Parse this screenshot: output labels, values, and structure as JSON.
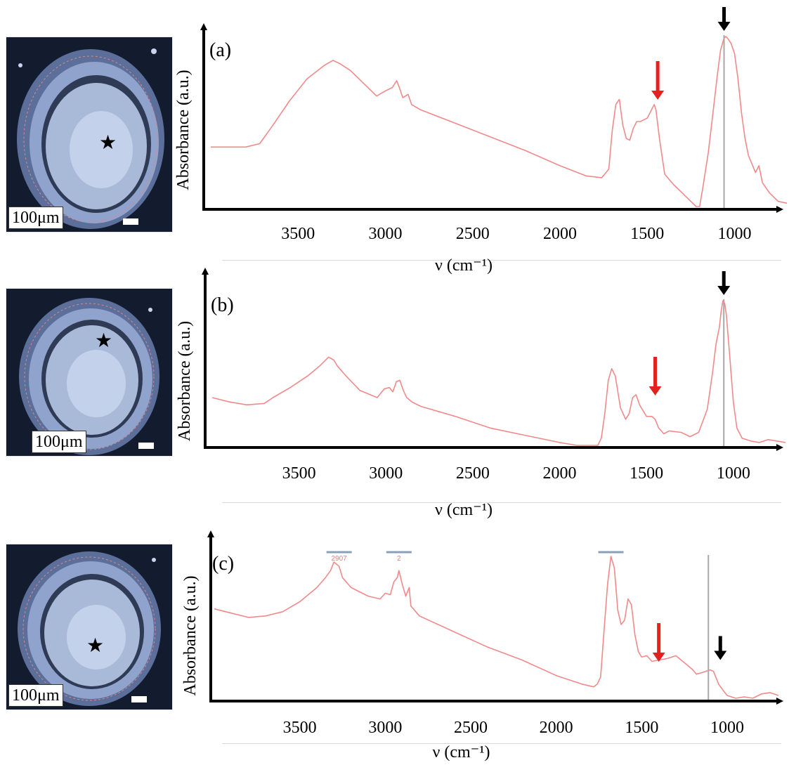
{
  "micrographs": [
    {
      "scale_label": "100μm",
      "star": "★"
    },
    {
      "scale_label": "100μm",
      "star": "★"
    },
    {
      "scale_label": "100μm",
      "star": "★"
    }
  ],
  "chart_data": [
    {
      "type": "line",
      "panel_label": "(a)",
      "ylabel": "Absorbance (a.u.)",
      "xlabel": "ν (cm⁻¹)",
      "xlim": [
        4000,
        700
      ],
      "xticks": [
        3500,
        3000,
        2500,
        2000,
        1500,
        1000
      ],
      "ylim": [
        0,
        1
      ],
      "line_color": "#f08a8a",
      "series": [
        {
          "x": [
            4000,
            3800,
            3720,
            3650,
            3550,
            3450,
            3350,
            3300,
            3260,
            3200,
            3100,
            3050,
            3000,
            2960,
            2935,
            2920,
            2900,
            2870,
            2850,
            2800,
            2600,
            2400,
            2200,
            2000,
            1850,
            1760,
            1720,
            1700,
            1680,
            1660,
            1640,
            1620,
            1600,
            1580,
            1560,
            1540,
            1500,
            1460,
            1450,
            1430,
            1400,
            1350,
            1300,
            1250,
            1220,
            1200,
            1180,
            1150,
            1120,
            1100,
            1080,
            1060,
            1050,
            1040,
            1020,
            1000,
            980,
            960,
            940,
            920,
            900,
            880,
            860,
            840,
            800,
            750,
            700
          ],
          "y": [
            0.35,
            0.35,
            0.37,
            0.47,
            0.62,
            0.75,
            0.83,
            0.86,
            0.84,
            0.8,
            0.7,
            0.65,
            0.68,
            0.7,
            0.74,
            0.7,
            0.64,
            0.66,
            0.6,
            0.57,
            0.49,
            0.41,
            0.33,
            0.24,
            0.18,
            0.17,
            0.22,
            0.45,
            0.6,
            0.63,
            0.48,
            0.4,
            0.39,
            0.46,
            0.5,
            0.5,
            0.52,
            0.6,
            0.57,
            0.4,
            0.19,
            0.13,
            0.08,
            0.03,
            0.0,
            0.0,
            0.12,
            0.32,
            0.58,
            0.76,
            0.92,
            0.99,
            1.0,
            0.99,
            0.96,
            0.9,
            0.75,
            0.55,
            0.4,
            0.3,
            0.25,
            0.2,
            0.24,
            0.14,
            0.08,
            0.03,
            0.02
          ]
        }
      ],
      "markers": {
        "line_x": 1060,
        "black_arrow_x": 1060,
        "red_arrow_x": 1440
      }
    },
    {
      "type": "line",
      "panel_label": "(b)",
      "ylabel": "Absorbance (a.u.)",
      "xlabel": "ν (cm⁻¹)",
      "xlim": [
        4000,
        700
      ],
      "xticks": [
        3500,
        3000,
        2500,
        2000,
        1500,
        1000
      ],
      "ylim": [
        0,
        1
      ],
      "line_color": "#f08a8a",
      "series": [
        {
          "x": [
            4000,
            3900,
            3800,
            3700,
            3650,
            3550,
            3450,
            3380,
            3330,
            3300,
            3280,
            3230,
            3150,
            3050,
            3010,
            2980,
            2960,
            2940,
            2920,
            2900,
            2880,
            2850,
            2800,
            2600,
            2400,
            2200,
            2000,
            1900,
            1850,
            1820,
            1780,
            1760,
            1740,
            1720,
            1700,
            1680,
            1650,
            1620,
            1600,
            1580,
            1560,
            1540,
            1500,
            1470,
            1450,
            1430,
            1400,
            1370,
            1300,
            1250,
            1200,
            1150,
            1120,
            1100,
            1080,
            1070,
            1060,
            1050,
            1040,
            1020,
            1000,
            980,
            950,
            900,
            850,
            800,
            750,
            700
          ],
          "y": [
            0.33,
            0.3,
            0.28,
            0.29,
            0.33,
            0.4,
            0.48,
            0.55,
            0.61,
            0.59,
            0.55,
            0.48,
            0.38,
            0.33,
            0.39,
            0.4,
            0.37,
            0.44,
            0.45,
            0.38,
            0.33,
            0.3,
            0.27,
            0.2,
            0.12,
            0.07,
            0.02,
            0.0,
            0.0,
            0.0,
            0.0,
            0.05,
            0.22,
            0.45,
            0.53,
            0.48,
            0.26,
            0.18,
            0.22,
            0.33,
            0.35,
            0.28,
            0.2,
            0.2,
            0.18,
            0.12,
            0.08,
            0.1,
            0.09,
            0.06,
            0.09,
            0.25,
            0.5,
            0.7,
            0.82,
            0.93,
            1.0,
            0.98,
            0.9,
            0.6,
            0.3,
            0.12,
            0.05,
            0.03,
            0.02,
            0.04,
            0.03,
            0.02
          ]
        }
      ],
      "markers": {
        "line_x": 1055,
        "black_arrow_x": 1055,
        "red_arrow_x": 1450
      }
    },
    {
      "type": "line",
      "panel_label": "(c)",
      "ylabel": "Absorbance (a.u.)",
      "xlabel": "ν (cm⁻¹)",
      "xlim": [
        4000,
        700
      ],
      "xticks": [
        3500,
        3000,
        2500,
        2000,
        1500,
        1000
      ],
      "ylim": [
        0,
        1
      ],
      "line_color": "#f08a8a",
      "series": [
        {
          "x": [
            4000,
            3900,
            3800,
            3700,
            3600,
            3500,
            3400,
            3350,
            3320,
            3300,
            3270,
            3250,
            3200,
            3100,
            3030,
            3000,
            2970,
            2950,
            2930,
            2920,
            2900,
            2880,
            2860,
            2850,
            2800,
            2600,
            2400,
            2200,
            2000,
            1850,
            1780,
            1760,
            1740,
            1720,
            1700,
            1680,
            1660,
            1640,
            1620,
            1600,
            1580,
            1560,
            1540,
            1520,
            1500,
            1470,
            1440,
            1400,
            1350,
            1300,
            1250,
            1200,
            1180,
            1150,
            1100,
            1080,
            1050,
            1020,
            1000,
            950,
            900,
            850,
            800,
            750,
            700
          ],
          "y": [
            0.63,
            0.6,
            0.57,
            0.58,
            0.61,
            0.68,
            0.78,
            0.85,
            0.9,
            0.96,
            0.93,
            0.85,
            0.78,
            0.72,
            0.7,
            0.74,
            0.73,
            0.82,
            0.85,
            0.9,
            0.8,
            0.72,
            0.78,
            0.65,
            0.58,
            0.47,
            0.36,
            0.27,
            0.16,
            0.1,
            0.08,
            0.1,
            0.15,
            0.48,
            0.8,
            1.0,
            0.92,
            0.62,
            0.52,
            0.55,
            0.7,
            0.66,
            0.45,
            0.33,
            0.29,
            0.3,
            0.26,
            0.27,
            0.28,
            0.3,
            0.25,
            0.2,
            0.17,
            0.18,
            0.2,
            0.19,
            0.1,
            0.05,
            0.02,
            0.0,
            0.01,
            0.0,
            0.03,
            0.04,
            0.02
          ]
        }
      ],
      "markers": {
        "line_x": 1110,
        "black_arrow_x": 1040,
        "red_arrow_x": 1400
      },
      "annotations": [
        {
          "text": "2907",
          "x": 3270
        },
        {
          "text": "2",
          "x": 2920
        },
        {
          "text": "",
          "x": 1680
        }
      ]
    }
  ]
}
